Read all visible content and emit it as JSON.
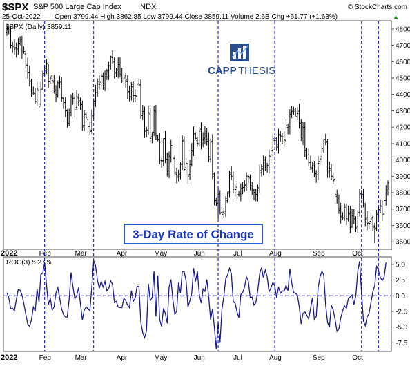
{
  "header": {
    "symbol": "$SPX",
    "name": "S&P 500 Large Cap Index",
    "exchange": "INDX",
    "watermark": "© StockCharts.com",
    "date": "25-Oct-2022",
    "quote": "Open 3799.44  High 3862.85  Low 3799.44  Close 3859.11  Volume 2.6B  Chg +61.77 (+1.63%)",
    "quote_arrow": "▲"
  },
  "logo": {
    "text_a": "CAPP",
    "text_b": "THESIS"
  },
  "annotation": "3-Day Rate of Change",
  "colors": {
    "bars": "#000000",
    "roc_line": "#1a1a8c",
    "dash_lines": "#0000cc",
    "zero_line": "#0000aa",
    "logo": "#2a4d8f",
    "annotation_text": "#1a35c4",
    "annotation_border": "#2f5fd0"
  },
  "chart_data": [
    {
      "type": "ohlc",
      "legend": "$SPX (Daily) 3859.11",
      "y_ticks": [
        3500,
        3600,
        3700,
        3800,
        3900,
        4000,
        4100,
        4200,
        4300,
        4400,
        4500,
        4600,
        4700,
        4800
      ],
      "ylim": [
        3450,
        4850
      ],
      "x_labels": [
        "2022",
        "Feb",
        "Mar",
        "Apr",
        "May",
        "Jun",
        "Jul",
        "Aug",
        "Sep",
        "Oct"
      ],
      "close": [
        4797,
        4793,
        4700,
        4697,
        4677,
        4670,
        4713,
        4726,
        4659,
        4662,
        4577,
        4533,
        4482,
        4398,
        4410,
        4357,
        4432,
        4326,
        4431,
        4516,
        4547,
        4589,
        4477,
        4500,
        4484,
        4418,
        4401,
        4471,
        4475,
        4380,
        4349,
        4304,
        4225,
        4288,
        4385,
        4374,
        4306,
        4386,
        4363,
        4329,
        4201,
        4277,
        4260,
        4204,
        4173,
        4262,
        4358,
        4411,
        4463,
        4462,
        4512,
        4456,
        4520,
        4543,
        4575,
        4631,
        4602,
        4530,
        4546,
        4583,
        4525,
        4481,
        4500,
        4488,
        4412,
        4397,
        4446,
        4393,
        4392,
        4462,
        4459,
        4272,
        4296,
        4175,
        4183,
        4288,
        4132,
        4155,
        4300,
        4147,
        4123,
        4000,
        3991,
        4123,
        4001,
        3930,
        4023,
        4088,
        4008,
        3923,
        3901,
        3900,
        3973,
        4115,
        3941,
        3979,
        3901,
        3974,
        4058,
        4158,
        4132,
        4101,
        4176,
        4108,
        4121,
        4161,
        4115,
        4018,
        4109,
        3901,
        3750,
        3735,
        3789,
        3675,
        3667,
        3674,
        3765,
        3795,
        3911,
        3900,
        3821,
        3819,
        3786,
        3785,
        3825,
        3831,
        3845,
        3902,
        3899,
        3854,
        3818,
        3801,
        3790,
        3830,
        3936,
        3959,
        3998,
        3962,
        3967,
        4024,
        4072,
        4130,
        4118,
        4091,
        4155,
        4145,
        4140,
        4122,
        4210,
        4207,
        4280,
        4297,
        4305,
        4274,
        4283,
        4228,
        4137,
        4199,
        4057,
        4030,
        3986,
        3955,
        3966,
        3924,
        3908,
        3979,
        4006,
        4067,
        4110,
        4106,
        3932,
        3946,
        3901,
        3873,
        3789,
        3757,
        3693,
        3655,
        3647,
        3719,
        3641,
        3678,
        3586,
        3658,
        3640,
        3585,
        3678,
        3791,
        3783,
        3744,
        3639,
        3612,
        3612,
        3640,
        3588,
        3577,
        3669,
        3695,
        3719,
        3665,
        3752,
        3798,
        3859
      ],
      "highs": [
        {
          "i": 0,
          "v": 4819
        },
        {
          "i": 55,
          "v": 4637
        },
        {
          "i": 152,
          "v": 4325
        }
      ],
      "lows": [
        {
          "i": 112,
          "v": 3637
        },
        {
          "i": 195,
          "v": 3491
        }
      ]
    },
    {
      "type": "line",
      "legend": "ROC(3) 5.27%",
      "y_ticks": [
        -7.5,
        -5.0,
        -2.5,
        0.0,
        2.5,
        5.0
      ],
      "ylim": [
        -8.9,
        6.2
      ],
      "roc3": [
        0.5,
        -0.3,
        -2.1,
        -2.0,
        -2.4,
        -0.6,
        1.0,
        0.9,
        0.1,
        -1.3,
        -2.9,
        -4.5,
        -4.9,
        -3.9,
        -1.8,
        -2.5,
        1.1,
        -1.0,
        3.4,
        3.6,
        5.3,
        1.7,
        -1.4,
        -0.4,
        -2.3,
        -1.8,
        0.4,
        1.3,
        -0.4,
        -2.1,
        -3.0,
        -3.4,
        -3.4,
        -0.6,
        3.7,
        1.5,
        -0.5,
        0.0,
        1.3,
        -1.3,
        -3.9,
        -2.3,
        -1.8,
        -2.1,
        -2.4,
        1.4,
        5.6,
        4.8,
        2.5,
        1.2,
        2.3,
        1.4,
        2.3,
        0.8,
        1.2,
        2.4,
        1.8,
        -1.1,
        -0.9,
        -1.8,
        -1.9,
        -1.9,
        -0.4,
        -0.8,
        -1.5,
        -1.9,
        0.8,
        -0.9,
        -0.4,
        1.5,
        1.5,
        -4.2,
        -5.9,
        -6.7,
        -5.6,
        1.9,
        -0.8,
        -0.3,
        3.9,
        -3.3,
        3.2,
        -3.8,
        -4.9,
        -2.0,
        -2.8,
        -4.4,
        1.4,
        2.6,
        -0.7,
        -2.9,
        -2.5,
        2.1,
        0.4,
        3.9,
        3.8,
        2.4,
        -1.8,
        -0.8,
        0.4,
        4.4,
        2.3,
        3.9,
        0.2,
        -1.2,
        1.1,
        0.7,
        2.6,
        -0.2,
        -3.8,
        -2.1,
        -5.1,
        -8.5,
        -4.3,
        -7.4,
        -2.2,
        -0.1,
        2.7,
        3.3,
        4.4,
        3.5,
        -0.9,
        -1.2,
        -2.6,
        -3.5,
        0.2,
        0.5,
        1.4,
        3.0,
        2.3,
        -0.3,
        -0.2,
        -1.5,
        -1.1,
        0.8,
        3.5,
        4.5,
        2.9,
        4.1,
        3.0,
        0.6,
        1.3,
        2.1,
        1.6,
        -0.3,
        1.4,
        0.4,
        0.8,
        0.7,
        1.7,
        0.8,
        4.3,
        2.1,
        0.5,
        0.4,
        0.1,
        -1.8,
        -4.5,
        -2.8,
        -2.6,
        -3.1,
        -3.7,
        -2.0,
        -0.3,
        -3.8,
        -3.3,
        1.3,
        3.0,
        3.9,
        3.3,
        -1.5,
        -4.3,
        -5.0,
        -1.5,
        -2.3,
        -3.8,
        -5.7,
        -5.3,
        -3.5,
        -2.4,
        -1.6,
        -2.0,
        -0.5,
        -0.2,
        0.1,
        -1.4,
        0.0,
        3.9,
        5.5,
        0.7,
        -4.0,
        -4.8,
        -3.4,
        -2.8,
        -1.1,
        0.6,
        1.6,
        4.8,
        4.0,
        2.9,
        2.4,
        3.0,
        5.3
      ]
    }
  ]
}
